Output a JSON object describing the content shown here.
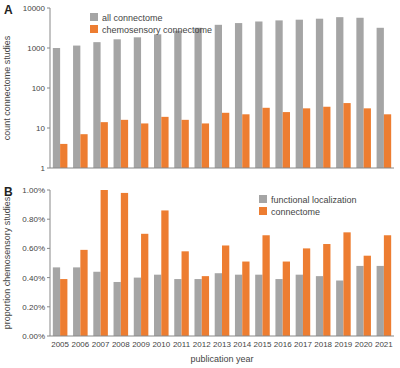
{
  "chart_data": [
    {
      "type": "bar",
      "title": "A",
      "y_label": "count connectome studies",
      "categories": [
        "2005",
        "2006",
        "2007",
        "2008",
        "2009",
        "2010",
        "2011",
        "2012",
        "2013",
        "2014",
        "2015",
        "2016",
        "2017",
        "2018",
        "2019",
        "2020",
        "2021"
      ],
      "series": [
        {
          "name": "all connectome",
          "color": "#a5a5a5",
          "values": [
            1000,
            1150,
            1400,
            1650,
            1850,
            2200,
            2700,
            3200,
            3800,
            4200,
            4600,
            4900,
            5100,
            5400,
            5900,
            5700,
            3200
          ]
        },
        {
          "name": "chemosensory connectome",
          "color": "#ed7d31",
          "values": [
            4,
            7,
            14,
            16,
            13,
            19,
            16,
            13,
            24,
            22,
            32,
            25,
            31,
            34,
            42,
            31,
            22
          ]
        }
      ],
      "log": "y",
      "ylim": [
        1,
        10000
      ],
      "yticks": [
        1,
        10,
        100,
        1000,
        10000
      ],
      "grid": false,
      "legend": "upper left",
      "tick_labels": "y"
    },
    {
      "type": "bar",
      "title": "B",
      "y_label": "proportion chemosensory studies",
      "x_label": "publication year",
      "categories": [
        "2005",
        "2006",
        "2007",
        "2008",
        "2009",
        "2010",
        "2011",
        "2012",
        "2013",
        "2014",
        "2015",
        "2016",
        "2017",
        "2018",
        "2019",
        "2020",
        "2021"
      ],
      "series": [
        {
          "name": "functional localization",
          "color": "#a5a5a5",
          "values": [
            0.47,
            0.47,
            0.44,
            0.37,
            0.4,
            0.42,
            0.39,
            0.39,
            0.43,
            0.42,
            0.42,
            0.39,
            0.42,
            0.41,
            0.38,
            0.48,
            0.48
          ]
        },
        {
          "name": "connectome",
          "color": "#ed7d31",
          "values": [
            0.39,
            0.59,
            1.0,
            0.98,
            0.7,
            0.86,
            0.58,
            0.41,
            0.62,
            0.51,
            0.69,
            0.51,
            0.6,
            0.63,
            0.71,
            0.55,
            0.69
          ]
        }
      ],
      "ylim": [
        0,
        1
      ],
      "yticks": [
        {
          "value": 0,
          "label": "0.00%"
        },
        {
          "value": 0.2,
          "label": "0.20%"
        },
        {
          "value": 0.4,
          "label": "0.40%"
        },
        {
          "value": 0.6,
          "label": "0.60%"
        },
        {
          "value": 0.8,
          "label": "0.80%"
        },
        {
          "value": 1,
          "label": "1.00%"
        }
      ],
      "grid": false,
      "legend": "upper right"
    }
  ]
}
